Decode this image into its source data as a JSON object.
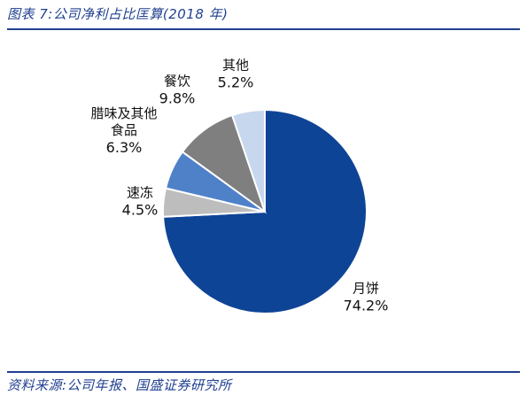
{
  "figure": {
    "title": "图表 7:公司净利占比匡算(2018 年)",
    "source": "资料来源:公司年报、国盛证券研究所"
  },
  "chart_data": {
    "type": "pie",
    "title": "图表 7:公司净利占比匡算(2018 年)",
    "start_angle_deg": 0,
    "direction": "clockwise",
    "legend": "none",
    "slices": [
      {
        "label_lines": [
          "月饼"
        ],
        "label": "月饼",
        "value": 74.2,
        "value_label": "74.2%",
        "color": "#0e4496"
      },
      {
        "label_lines": [
          "速冻"
        ],
        "label": "速冻",
        "value": 4.5,
        "value_label": "4.5%",
        "color": "#bdbdbd"
      },
      {
        "label_lines": [
          "腊味及其他",
          "食品"
        ],
        "label": "腊味及其他食品",
        "value": 6.3,
        "value_label": "6.3%",
        "color": "#4f81c9"
      },
      {
        "label_lines": [
          "餐饮"
        ],
        "label": "餐饮",
        "value": 9.8,
        "value_label": "9.8%",
        "color": "#7f7f7f"
      },
      {
        "label_lines": [
          "其他"
        ],
        "label": "其他",
        "value": 5.2,
        "value_label": "5.2%",
        "color": "#c7d7ee"
      }
    ]
  }
}
